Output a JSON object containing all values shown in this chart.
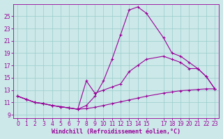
{
  "xlabel": "Windchill (Refroidissement éolien,°C)",
  "bg_color": "#cce8e8",
  "line_color": "#990099",
  "grid_color": "#99cccc",
  "line1_x": [
    0,
    1,
    2,
    3,
    4,
    5,
    6,
    7,
    8,
    9,
    10,
    11,
    12,
    13,
    14,
    15,
    17,
    18,
    19,
    20,
    21,
    22,
    23
  ],
  "line1_y": [
    12.0,
    11.5,
    11.0,
    10.8,
    10.5,
    10.3,
    10.1,
    9.9,
    10.0,
    10.2,
    10.5,
    10.8,
    11.1,
    11.4,
    11.7,
    12.0,
    12.5,
    12.7,
    12.9,
    13.0,
    13.1,
    13.2,
    13.2
  ],
  "line2_x": [
    0,
    1,
    2,
    3,
    4,
    5,
    6,
    7,
    8,
    9,
    10,
    11,
    12,
    13,
    14,
    15,
    17,
    18,
    19,
    20,
    21,
    22,
    23
  ],
  "line2_y": [
    12.0,
    11.5,
    11.0,
    10.8,
    10.5,
    10.3,
    10.1,
    9.9,
    10.5,
    12.0,
    14.5,
    18.0,
    22.0,
    26.0,
    26.5,
    25.5,
    21.5,
    19.0,
    18.5,
    17.5,
    16.5,
    15.2,
    13.2
  ],
  "line3_x": [
    0,
    1,
    2,
    3,
    4,
    5,
    6,
    7,
    8,
    9,
    10,
    11,
    12,
    13,
    14,
    15,
    17,
    18,
    19,
    20,
    21,
    22,
    23
  ],
  "line3_y": [
    12.0,
    11.5,
    11.0,
    10.8,
    10.5,
    10.3,
    10.1,
    9.9,
    14.5,
    12.5,
    13.0,
    13.5,
    14.0,
    16.0,
    17.0,
    18.0,
    18.5,
    18.0,
    17.5,
    16.5,
    16.5,
    15.2,
    13.2
  ],
  "ylim": [
    8.5,
    27.0
  ],
  "xlim": [
    -0.5,
    23.5
  ],
  "yticks": [
    9,
    11,
    13,
    15,
    17,
    19,
    21,
    23,
    25
  ],
  "xticks": [
    0,
    1,
    2,
    3,
    4,
    5,
    6,
    7,
    8,
    9,
    10,
    11,
    12,
    13,
    14,
    15,
    17,
    18,
    19,
    20,
    21,
    22,
    23
  ],
  "xlabel_fontsize": 6.0,
  "tick_fontsize": 5.5
}
